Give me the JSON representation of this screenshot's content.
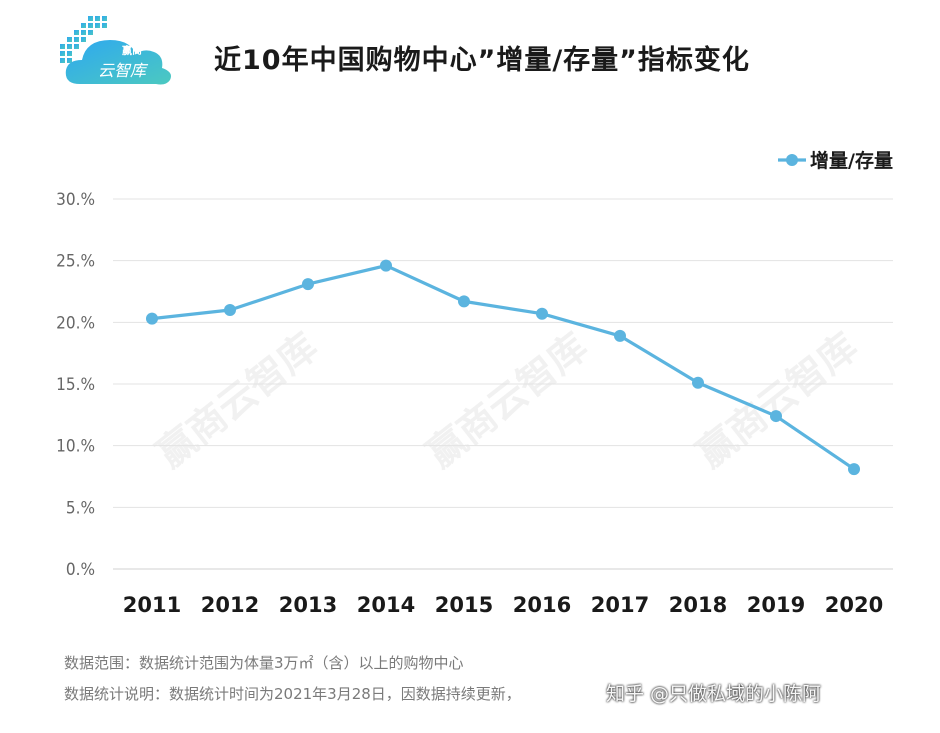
{
  "header": {
    "logo_text_top": "赢商",
    "logo_text_bottom": "云智库",
    "title": "近10年中国购物中心”增量/存量”指标变化"
  },
  "chart_data": {
    "type": "line",
    "title": "近10年中国购物中心”增量/存量”指标变化",
    "categories": [
      "2011",
      "2012",
      "2013",
      "2014",
      "2015",
      "2016",
      "2017",
      "2018",
      "2019",
      "2020"
    ],
    "series": [
      {
        "name": "增量/存量",
        "values": [
          20.3,
          21.0,
          23.1,
          24.6,
          21.7,
          20.7,
          18.9,
          15.1,
          12.4,
          8.1
        ],
        "color": "#5bb4df"
      }
    ],
    "yticks": [
      "0.%",
      "5.%",
      "10.%",
      "15.%",
      "20.%",
      "25.%",
      "30.%"
    ],
    "ylim": [
      0,
      30
    ],
    "grid": true,
    "legend": "top-right",
    "xlabel": "",
    "ylabel": ""
  },
  "footer": {
    "note1": "数据范围：数据统计范围为体量3万㎡（含）以上的购物中心",
    "note2": "数据统计说明：数据统计时间为2021年3月28日，因数据持续更新，",
    "watermark": "知乎 @只做私域的小陈阿"
  },
  "watermarks": [
    "赢商云智库",
    "赢商云智库",
    "赢商云智库"
  ]
}
